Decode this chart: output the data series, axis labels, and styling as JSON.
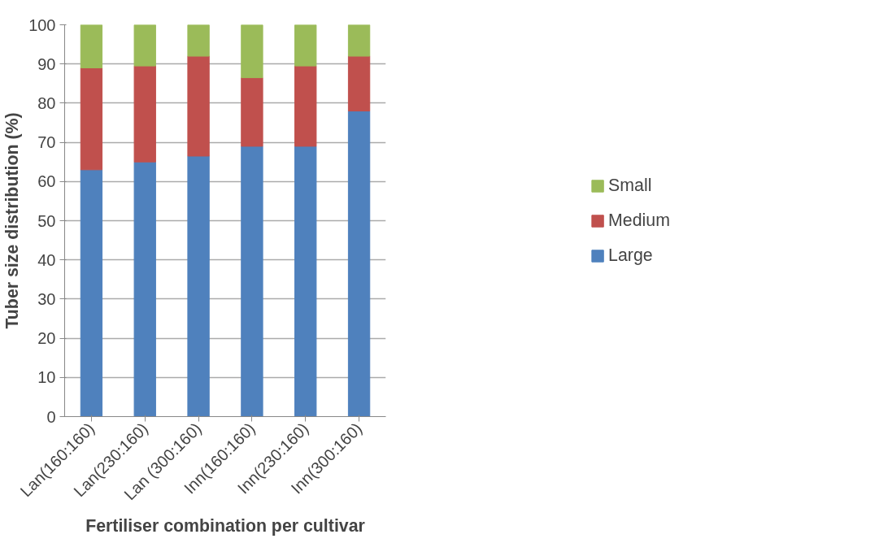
{
  "chart_data": {
    "type": "bar",
    "stacked": true,
    "xlabel": "Fertiliser combination per cultivar",
    "ylabel": "Tuber size distribution (%)",
    "categories": [
      "Lan(160:160)",
      "Lan(230:160)",
      "Lan (300:160)",
      "Inn(160:160)",
      "Inn(230:160)",
      "Inn(300:160)"
    ],
    "series": [
      {
        "name": "Large",
        "color": "#4f81bd",
        "values": [
          63,
          65,
          66.5,
          69,
          69,
          78
        ]
      },
      {
        "name": "Medium",
        "color": "#c0504d",
        "values": [
          26,
          24.5,
          25.5,
          17.5,
          20.5,
          14
        ]
      },
      {
        "name": "Small",
        "color": "#9bbb59",
        "values": [
          11,
          10.5,
          8,
          13.5,
          10.5,
          8
        ]
      }
    ],
    "ylim": [
      0,
      100
    ],
    "yticks": [
      0,
      10,
      20,
      30,
      40,
      50,
      60,
      70,
      80,
      90,
      100
    ],
    "grid": "y",
    "legend": "right"
  }
}
